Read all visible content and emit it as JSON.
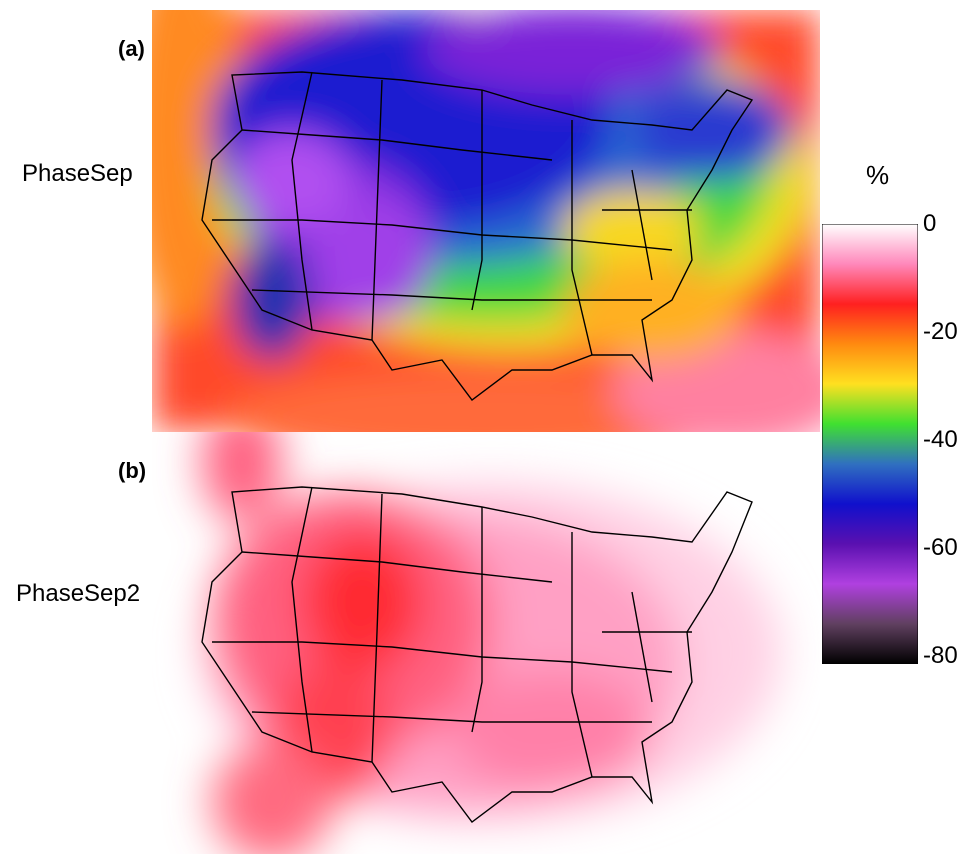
{
  "panels": [
    {
      "tag": "(a)",
      "name": "PhaseSep"
    },
    {
      "tag": "(b)",
      "name": "PhaseSep2"
    }
  ],
  "colorbar": {
    "unit": "%",
    "ticks": [
      "0",
      "-20",
      "-40",
      "-60",
      "-80"
    ],
    "stops": [
      "#ffffff",
      "#ff88bb",
      "#ff2020",
      "#ff8a10",
      "#ffe020",
      "#40e030",
      "#3070c0",
      "#1010cc",
      "#5a10b0",
      "#b040e0",
      "#604060",
      "#000000"
    ]
  }
}
